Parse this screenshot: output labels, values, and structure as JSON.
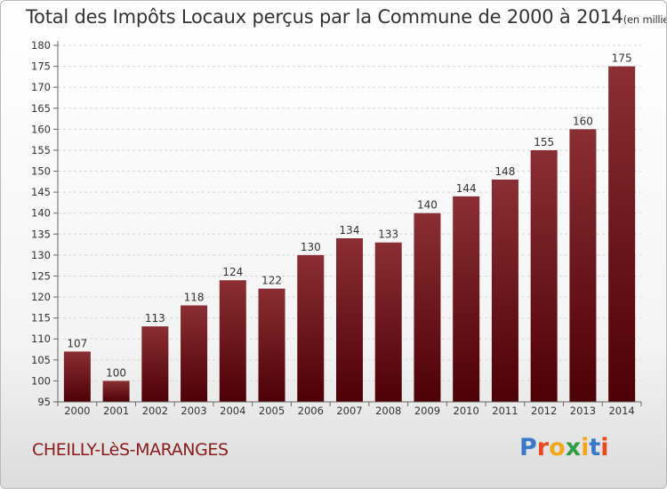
{
  "title": "Total des Impôts Locaux perçus par la Commune de 2000 à 2014",
  "subtitle": "(en milliers d'€)",
  "commune": "CHEILLY-LèS-MARANGES",
  "logo": {
    "text": "Proxiti",
    "letter_colors": [
      "#3a78c8",
      "#e8491d",
      "#f2a81d",
      "#2f9e44",
      "#f2a81d",
      "#3a78c8",
      "#e8491d"
    ]
  },
  "colors": {
    "bar_top": "#8a2f33",
    "bar_bottom": "#4d0006",
    "accent": "#8b1a1a"
  },
  "chart_data": {
    "type": "bar",
    "categories": [
      "2000",
      "2001",
      "2002",
      "2003",
      "2004",
      "2005",
      "2006",
      "2007",
      "2008",
      "2009",
      "2010",
      "2011",
      "2012",
      "2013",
      "2014"
    ],
    "values": [
      107,
      100,
      113,
      118,
      124,
      122,
      130,
      134,
      133,
      140,
      144,
      148,
      155,
      160,
      175
    ],
    "ylim": [
      95,
      180
    ],
    "yticks": [
      95,
      100,
      105,
      110,
      115,
      120,
      125,
      130,
      135,
      140,
      145,
      150,
      155,
      160,
      165,
      170,
      175,
      180
    ],
    "grid": true
  }
}
